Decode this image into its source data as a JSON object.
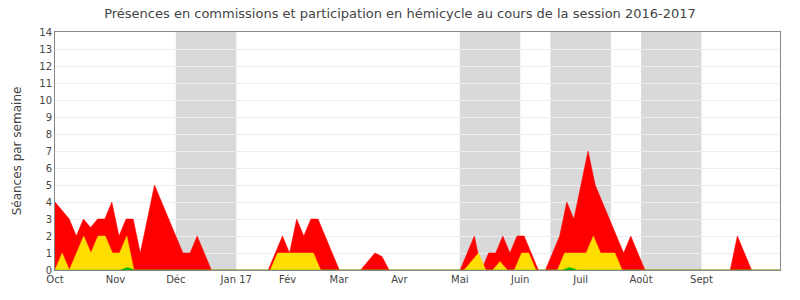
{
  "chart_data": {
    "type": "area",
    "title": "Présences en commissions et participation en hémicycle au cours de la session 2016-2017",
    "y_label": "Séances par semaine",
    "xlim": [
      0,
      12
    ],
    "xticks": [
      {
        "value": 0,
        "label": "Oct"
      },
      {
        "value": 1,
        "label": "Nov"
      },
      {
        "value": 2,
        "label": "Déc"
      },
      {
        "value": 3,
        "label": "Jan 17"
      },
      {
        "value": 3.85,
        "label": "Fév"
      },
      {
        "value": 4.7,
        "label": "Mar"
      },
      {
        "value": 5.7,
        "label": "Avr"
      },
      {
        "value": 6.7,
        "label": "Mai"
      },
      {
        "value": 7.7,
        "label": "Juin"
      },
      {
        "value": 8.7,
        "label": "Juil"
      },
      {
        "value": 9.7,
        "label": "Août"
      },
      {
        "value": 10.7,
        "label": "Sept"
      }
    ],
    "ylim": [
      0,
      14
    ],
    "yticks": [
      0,
      1,
      2,
      3,
      4,
      5,
      6,
      7,
      8,
      9,
      10,
      11,
      12,
      13,
      14
    ],
    "grid": "y",
    "bands": [
      [
        2.0,
        3.0
      ],
      [
        6.7,
        7.7
      ],
      [
        8.2,
        9.2
      ],
      [
        9.7,
        10.7
      ]
    ],
    "band_color": "#aaaaaa",
    "series": [
      {
        "color": "#ff0000",
        "values": [
          4,
          3.5,
          3,
          2,
          3,
          2.5,
          3,
          3,
          4,
          2,
          3,
          3,
          1,
          3,
          5,
          4,
          3,
          2,
          1,
          1,
          2,
          1,
          0,
          0,
          0,
          0,
          0,
          0,
          0,
          0,
          0,
          1,
          2,
          1,
          3,
          2,
          3,
          3,
          2,
          1,
          0,
          0,
          0,
          0,
          0.5,
          1,
          0.8,
          0,
          0,
          0,
          0,
          0,
          0,
          0,
          0,
          0,
          0,
          0,
          1,
          2,
          0,
          1,
          1,
          2,
          1,
          2,
          2,
          1,
          0,
          0,
          1,
          2,
          4,
          3,
          5,
          7,
          5,
          4,
          3,
          2,
          1,
          2,
          1,
          0,
          0,
          0,
          0,
          0,
          0,
          0,
          0,
          0,
          0,
          0,
          0,
          0,
          2,
          1,
          0,
          0,
          0,
          0,
          0
        ]
      },
      {
        "color": "#ffdd00",
        "values": [
          0,
          1,
          0,
          1,
          2,
          1,
          2,
          2,
          1,
          1,
          2,
          0,
          0,
          0,
          0,
          0,
          0,
          0,
          0,
          0,
          0,
          0,
          0,
          0,
          0,
          0,
          0,
          0,
          0,
          0,
          0,
          1,
          1,
          1,
          1,
          1,
          1,
          0,
          0,
          0,
          0,
          0,
          0,
          0,
          0,
          0,
          0,
          0,
          0,
          0,
          0,
          0,
          0,
          0,
          0,
          0,
          0,
          0,
          0.5,
          1,
          0,
          0,
          0.5,
          0,
          0,
          1,
          1,
          0,
          0,
          0,
          0,
          1,
          1,
          1,
          1,
          2,
          1,
          1,
          1,
          0,
          0,
          0,
          0,
          0,
          0,
          0,
          0,
          0,
          0,
          0,
          0,
          0,
          0,
          0,
          0,
          0,
          0,
          0,
          0,
          0,
          0,
          0
        ]
      },
      {
        "color": "#00bb00",
        "values": [
          0,
          0,
          0,
          0,
          0,
          0,
          0,
          0,
          0,
          0,
          0.15,
          0,
          0,
          0,
          0,
          0,
          0,
          0,
          0,
          0,
          0,
          0,
          0,
          0,
          0,
          0,
          0,
          0,
          0,
          0,
          0,
          0,
          0,
          0,
          0,
          0,
          0,
          0,
          0,
          0,
          0,
          0,
          0,
          0,
          0,
          0,
          0,
          0,
          0,
          0,
          0,
          0,
          0,
          0,
          0,
          0,
          0,
          0,
          0,
          0,
          0,
          0,
          0,
          0,
          0,
          0,
          0,
          0,
          0,
          0,
          0,
          0.15,
          0,
          0,
          0,
          0,
          0,
          0,
          0,
          0,
          0,
          0,
          0,
          0,
          0,
          0,
          0,
          0,
          0,
          0,
          0,
          0,
          0,
          0,
          0,
          0,
          0,
          0,
          0,
          0,
          0
        ]
      }
    ]
  }
}
